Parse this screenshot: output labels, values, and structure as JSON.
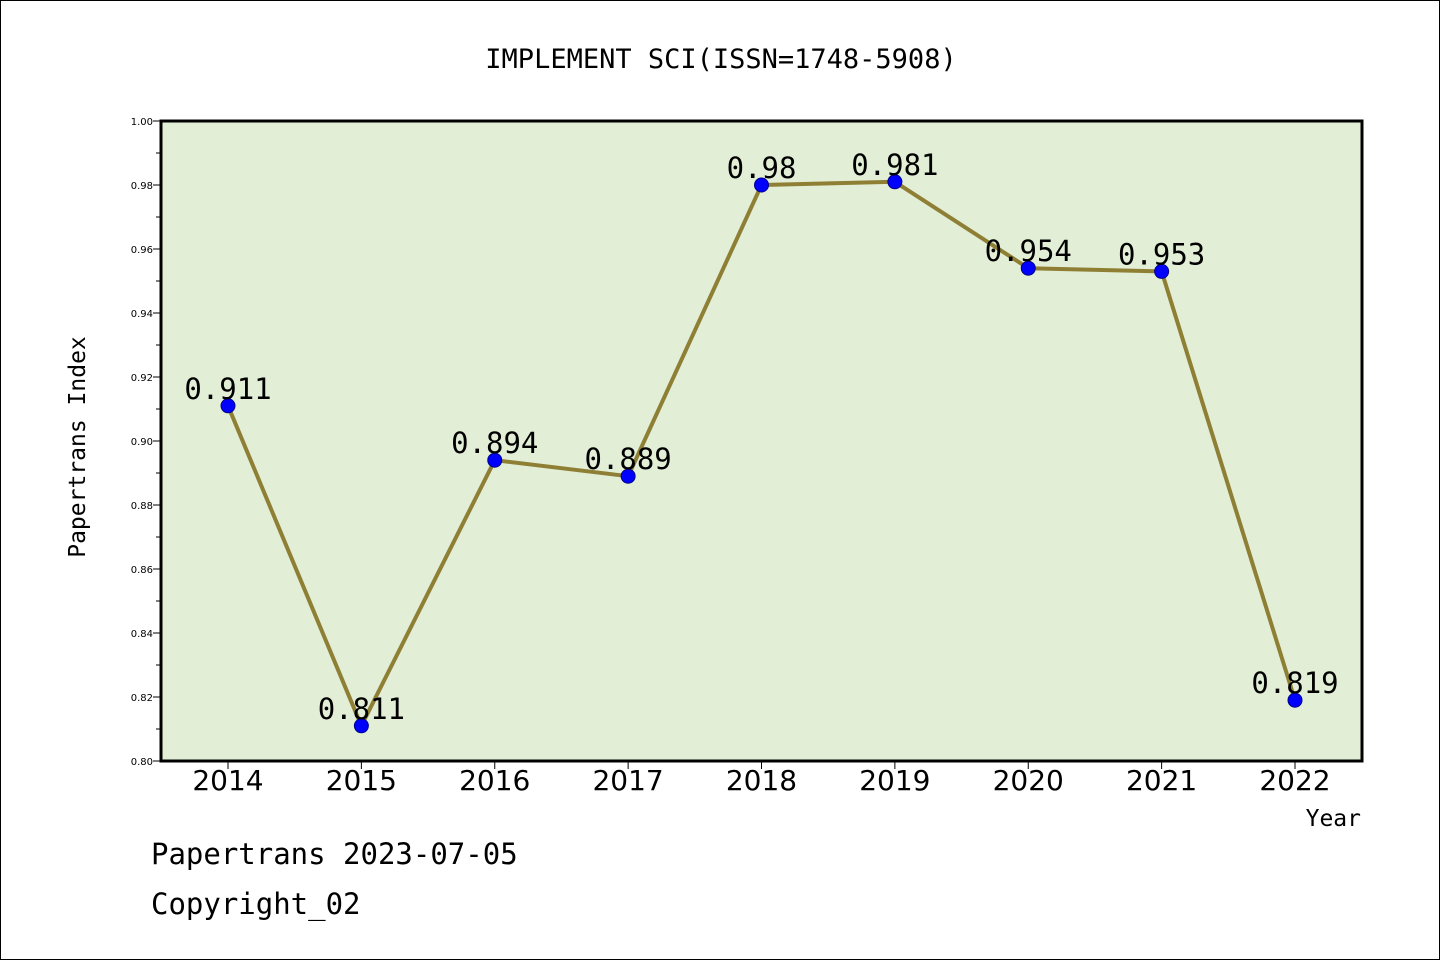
{
  "chart_data": {
    "type": "line",
    "title": "IMPLEMENT SCI(ISSN=1748-5908)",
    "xlabel": "Year",
    "ylabel": "Papertrans Index",
    "categories": [
      "2014",
      "2015",
      "2016",
      "2017",
      "2018",
      "2019",
      "2020",
      "2021",
      "2022"
    ],
    "series": [
      {
        "values": [
          0.911,
          0.811,
          0.894,
          0.889,
          0.98,
          0.981,
          0.954,
          0.953,
          0.819
        ],
        "labels": [
          "0.911",
          "0.811",
          "0.894",
          "0.889",
          "0.98",
          "0.981",
          "0.954",
          "0.953",
          "0.819"
        ]
      }
    ],
    "ylim": [
      0.8,
      1.0
    ],
    "yticks": [
      "0.80",
      "0.82",
      "0.84",
      "0.86",
      "0.88",
      "0.90",
      "0.92",
      "0.94",
      "0.96",
      "0.98",
      "1.00"
    ],
    "grid": false,
    "colors": {
      "plot_background": "#e2efd6",
      "line": "#8e7f35",
      "marker": "#0000ff",
      "axes": "#000000"
    }
  },
  "footer": {
    "source": "Papertrans 2023-07-05",
    "copyright": "Copyright_02"
  }
}
